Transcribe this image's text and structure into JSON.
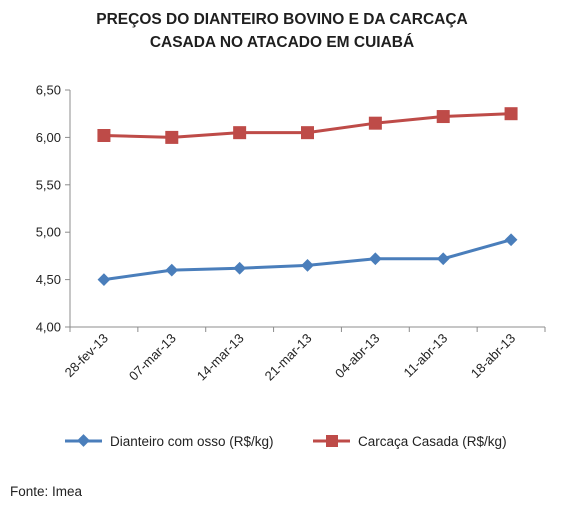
{
  "chart_data": {
    "type": "line",
    "title_lines": [
      "PREÇOS DO DIANTEIRO BOVINO E DA CARCAÇA",
      "CASADA NO ATACADO EM CUIABÁ"
    ],
    "categories": [
      "28-fev-13",
      "07-mar-13",
      "14-mar-13",
      "21-mar-13",
      "04-abr-13",
      "11-abr-13",
      "18-abr-13"
    ],
    "series": [
      {
        "name": "Dianteiro com osso (R$/kg)",
        "color": "#4a7ebb",
        "marker": "diamond",
        "values": [
          4.5,
          4.6,
          4.62,
          4.65,
          4.72,
          4.72,
          4.92
        ]
      },
      {
        "name": "Carcaça Casada (R$/kg)",
        "color": "#be4b48",
        "marker": "square",
        "values": [
          6.02,
          6.0,
          6.05,
          6.05,
          6.15,
          6.22,
          6.25
        ]
      }
    ],
    "y_ticks": [
      "4,00",
      "4,50",
      "5,00",
      "5,50",
      "6,00",
      "6,50"
    ],
    "ylim": [
      4.0,
      6.5
    ],
    "grid": false,
    "legend_position": "bottom",
    "source": "Fonte: Imea"
  }
}
